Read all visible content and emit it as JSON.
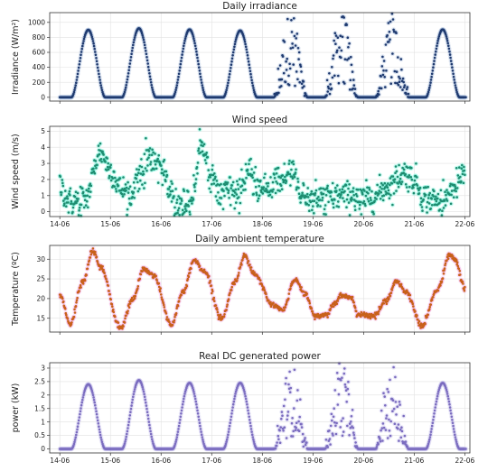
{
  "chart_data": [
    {
      "type": "scatter",
      "title": "Daily irradiance",
      "ylabel": "Irradiance (W/m²)",
      "xlabel": "",
      "ylim": [
        -50,
        1130
      ],
      "yticks": [
        0,
        200,
        400,
        600,
        800,
        1000
      ],
      "grid": true,
      "x_tick_labels_shown": false,
      "x_range_days": [
        13.8,
        22.1
      ],
      "color": "#1f3a6f",
      "halo_color": "#9db4d8",
      "pattern": "daily_bell",
      "days": [
        {
          "day": "14-06",
          "peak": 900,
          "noisy": false
        },
        {
          "day": "15-06",
          "peak": 920,
          "noisy": false
        },
        {
          "day": "16-06",
          "peak": 905,
          "noisy": false
        },
        {
          "day": "17-06",
          "peak": 890,
          "noisy": false
        },
        {
          "day": "18-06",
          "peak": 1080,
          "noisy": true
        },
        {
          "day": "19-06",
          "peak": 1110,
          "noisy": true
        },
        {
          "day": "20-06",
          "peak": 1020,
          "noisy": true
        },
        {
          "day": "21-06",
          "peak": 905,
          "noisy": false
        }
      ],
      "sunrise_hour": 5.5,
      "sunset_hour": 21.5,
      "night_value": 0
    },
    {
      "type": "scatter",
      "title": "Wind speed",
      "ylabel": "Wind speed (m/s)",
      "xlabel": "",
      "ylim": [
        -0.3,
        5.3
      ],
      "yticks": [
        0,
        1,
        2,
        3,
        4,
        5
      ],
      "grid": true,
      "x_tick_labels_shown": true,
      "x_tick_labels": [
        "14-06",
        "15-06",
        "16-06",
        "17-06",
        "18-06",
        "19-06",
        "20-06",
        "21-06",
        "22-06"
      ],
      "x_range_days": [
        13.8,
        22.1
      ],
      "color": "#1e8c70",
      "halo_color": "#5ff0d4",
      "pattern": "smooth_noise",
      "anchors": [
        {
          "t": 14.0,
          "y": 1.6
        },
        {
          "t": 14.2,
          "y": 0.6
        },
        {
          "t": 14.5,
          "y": 0.8
        },
        {
          "t": 14.8,
          "y": 3.7
        },
        {
          "t": 15.0,
          "y": 2.6
        },
        {
          "t": 15.2,
          "y": 1.4
        },
        {
          "t": 15.4,
          "y": 1.2
        },
        {
          "t": 15.6,
          "y": 2.4
        },
        {
          "t": 15.8,
          "y": 3.3
        },
        {
          "t": 16.0,
          "y": 2.8
        },
        {
          "t": 16.2,
          "y": 1.0
        },
        {
          "t": 16.4,
          "y": 0.4
        },
        {
          "t": 16.6,
          "y": 1.0
        },
        {
          "t": 16.8,
          "y": 3.9
        },
        {
          "t": 17.0,
          "y": 2.2
        },
        {
          "t": 17.2,
          "y": 1.1
        },
        {
          "t": 17.5,
          "y": 1.3
        },
        {
          "t": 17.7,
          "y": 2.2
        },
        {
          "t": 18.0,
          "y": 1.3
        },
        {
          "t": 18.3,
          "y": 1.9
        },
        {
          "t": 18.6,
          "y": 2.4
        },
        {
          "t": 18.8,
          "y": 1.1
        },
        {
          "t": 19.0,
          "y": 0.6
        },
        {
          "t": 19.3,
          "y": 0.9
        },
        {
          "t": 19.6,
          "y": 1.0
        },
        {
          "t": 19.9,
          "y": 0.7
        },
        {
          "t": 20.2,
          "y": 1.0
        },
        {
          "t": 20.5,
          "y": 1.6
        },
        {
          "t": 20.8,
          "y": 2.4
        },
        {
          "t": 21.0,
          "y": 2.0
        },
        {
          "t": 21.2,
          "y": 0.9
        },
        {
          "t": 21.5,
          "y": 0.6
        },
        {
          "t": 21.8,
          "y": 1.4
        },
        {
          "t": 22.0,
          "y": 2.6
        }
      ],
      "noise": 0.45
    },
    {
      "type": "scatter",
      "title": "Daily ambient temperature",
      "ylabel": "Temperature (ºC)",
      "xlabel": "",
      "ylim": [
        11.5,
        33.5
      ],
      "yticks": [
        15,
        20,
        25,
        30
      ],
      "grid": true,
      "x_tick_labels_shown": false,
      "x_range_days": [
        13.8,
        22.1
      ],
      "color": "#c8611a",
      "halo_color": "#f2a6e6",
      "pattern": "smooth_noise",
      "anchors": [
        {
          "t": 14.0,
          "y": 21.0
        },
        {
          "t": 14.2,
          "y": 13.5
        },
        {
          "t": 14.45,
          "y": 24.0
        },
        {
          "t": 14.65,
          "y": 32.0
        },
        {
          "t": 14.8,
          "y": 28.0
        },
        {
          "t": 15.2,
          "y": 12.5
        },
        {
          "t": 15.45,
          "y": 20.0
        },
        {
          "t": 15.65,
          "y": 27.5
        },
        {
          "t": 15.85,
          "y": 26.0
        },
        {
          "t": 16.2,
          "y": 13.5
        },
        {
          "t": 16.45,
          "y": 22.0
        },
        {
          "t": 16.65,
          "y": 29.8
        },
        {
          "t": 16.85,
          "y": 27.0
        },
        {
          "t": 17.2,
          "y": 15.0
        },
        {
          "t": 17.45,
          "y": 24.0
        },
        {
          "t": 17.65,
          "y": 31.0
        },
        {
          "t": 17.85,
          "y": 26.0
        },
        {
          "t": 18.2,
          "y": 18.5
        },
        {
          "t": 18.4,
          "y": 17.0
        },
        {
          "t": 18.65,
          "y": 25.0
        },
        {
          "t": 18.85,
          "y": 21.0
        },
        {
          "t": 19.05,
          "y": 15.5
        },
        {
          "t": 19.25,
          "y": 15.8
        },
        {
          "t": 19.45,
          "y": 19.0
        },
        {
          "t": 19.55,
          "y": 21.0
        },
        {
          "t": 19.75,
          "y": 20.0
        },
        {
          "t": 19.9,
          "y": 16.0
        },
        {
          "t": 20.2,
          "y": 15.5
        },
        {
          "t": 20.45,
          "y": 19.5
        },
        {
          "t": 20.65,
          "y": 24.5
        },
        {
          "t": 20.85,
          "y": 21.5
        },
        {
          "t": 21.15,
          "y": 13.0
        },
        {
          "t": 21.45,
          "y": 22.0
        },
        {
          "t": 21.7,
          "y": 31.0
        },
        {
          "t": 21.8,
          "y": 30.0
        },
        {
          "t": 22.0,
          "y": 22.5
        }
      ],
      "noise": 0.35
    },
    {
      "type": "scatter",
      "title": "Real DC generated power",
      "ylabel": "power (kW)",
      "xlabel": "",
      "ylim": [
        -0.15,
        3.2
      ],
      "yticks": [
        0.0,
        0.5,
        1.0,
        1.5,
        2.0,
        2.5,
        3.0
      ],
      "grid": true,
      "x_tick_labels_shown": true,
      "x_tick_labels": [
        "14-06",
        "15-06",
        "16-06",
        "17-06",
        "18-06",
        "19-06",
        "20-06",
        "21-06",
        "22-06"
      ],
      "x_range_days": [
        13.8,
        22.1
      ],
      "color": "#7b6cbf",
      "halo_color": "#c4bcec",
      "pattern": "daily_bell",
      "days": [
        {
          "day": "14-06",
          "peak": 2.4,
          "noisy": false
        },
        {
          "day": "15-06",
          "peak": 2.55,
          "noisy": false
        },
        {
          "day": "16-06",
          "peak": 2.45,
          "noisy": false
        },
        {
          "day": "17-06",
          "peak": 2.45,
          "noisy": false
        },
        {
          "day": "18-06",
          "peak": 3.05,
          "noisy": true
        },
        {
          "day": "19-06",
          "peak": 3.1,
          "noisy": true
        },
        {
          "day": "20-06",
          "peak": 2.95,
          "noisy": true
        },
        {
          "day": "21-06",
          "peak": 2.45,
          "noisy": false
        }
      ],
      "sunrise_hour": 5.5,
      "sunset_hour": 21.5,
      "night_value": 0
    }
  ]
}
